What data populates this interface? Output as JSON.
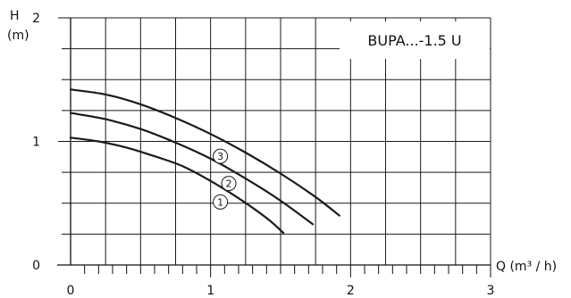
{
  "chart_data": {
    "type": "line",
    "title": "BUPA...-1.5 U",
    "xlabel": "Q (m³ / h)",
    "ylabel_line1": "H",
    "ylabel_line2": "(m)",
    "xlim": [
      0,
      3
    ],
    "ylim": [
      0,
      2
    ],
    "x_ticks": [
      {
        "value": 0,
        "label": "0"
      },
      {
        "value": 1,
        "label": "1"
      },
      {
        "value": 2,
        "label": "2"
      },
      {
        "value": 3,
        "label": "3"
      }
    ],
    "y_ticks": [
      {
        "value": 0,
        "label": "0"
      },
      {
        "value": 1,
        "label": "1"
      },
      {
        "value": 2,
        "label": "2"
      }
    ],
    "grid": true,
    "line_color": "#1a1a1a",
    "series": [
      {
        "name": "1",
        "x": [
          0.0,
          0.2,
          0.4,
          0.6,
          0.8,
          1.0,
          1.2,
          1.4,
          1.52
        ],
        "y": [
          1.03,
          1.0,
          0.95,
          0.88,
          0.8,
          0.68,
          0.54,
          0.38,
          0.26
        ]
      },
      {
        "name": "2",
        "x": [
          0.0,
          0.25,
          0.5,
          0.75,
          1.0,
          1.25,
          1.5,
          1.73
        ],
        "y": [
          1.23,
          1.18,
          1.1,
          0.99,
          0.86,
          0.7,
          0.52,
          0.33
        ]
      },
      {
        "name": "3",
        "x": [
          0.0,
          0.25,
          0.5,
          0.75,
          1.0,
          1.25,
          1.5,
          1.75,
          1.92
        ],
        "y": [
          1.42,
          1.38,
          1.3,
          1.19,
          1.06,
          0.91,
          0.74,
          0.55,
          0.4
        ]
      }
    ],
    "markers": [
      {
        "label": "1",
        "x": 1.07,
        "y": 0.51
      },
      {
        "label": "2",
        "x": 1.13,
        "y": 0.66
      },
      {
        "label": "3",
        "x": 1.07,
        "y": 0.88
      }
    ]
  }
}
